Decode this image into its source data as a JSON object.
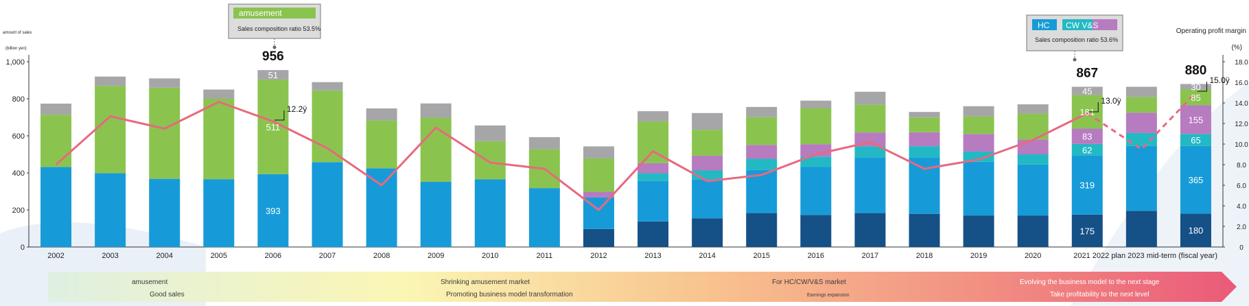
{
  "colors": {
    "grey": "#a6a6a9",
    "amusement": "#8ac44f",
    "vs": "#b77bc0",
    "cw": "#22b9c4",
    "hc": "#179bd8",
    "dark": "#155086",
    "margin_line": "#e8697f"
  },
  "chart_data": {
    "type": "bar",
    "stacked": true,
    "left_axis": {
      "label_line1": "amount of sales",
      "label_line2": "(billion yen)",
      "ticks": [
        "0",
        "200",
        "400",
        "600",
        "800",
        "1,000"
      ],
      "range": [
        0,
        1000
      ]
    },
    "right_axis": {
      "label": "Operating profit margin",
      "unit": "(%)",
      "ticks": [
        "0",
        "2.0",
        "4.0",
        "6.0",
        "8.0",
        "10.0",
        "12.0",
        "14.0",
        "16.0",
        "18.0"
      ],
      "range": [
        0,
        18
      ]
    },
    "categories": [
      "2002",
      "2003",
      "2004",
      "2005",
      "2006",
      "2007",
      "2008",
      "2009",
      "2010",
      "2011",
      "2012",
      "2013",
      "2014",
      "2015",
      "2016",
      "2017",
      "2018",
      "2019",
      "2020",
      "2021",
      "2022 plan",
      "2023 mid-term (fiscal year)"
    ],
    "x_labels": [
      "2002",
      "2003",
      "2004",
      "2005",
      "2006",
      "2007",
      "2008",
      "2009",
      "2010",
      "2011",
      "2012",
      "2013",
      "2014",
      "2015",
      "2016",
      "2017",
      "2018",
      "2019",
      "2020",
      "2021 2022 plan 2023 mid-term (fiscal year)"
    ],
    "series": [
      {
        "name": "dark",
        "color_key": "dark",
        "values": [
          0,
          0,
          0,
          0,
          0,
          0,
          0,
          0,
          0,
          0,
          97,
          138,
          155,
          183,
          173,
          183,
          179,
          170,
          170,
          175,
          195,
          180
        ]
      },
      {
        "name": "HC",
        "color_key": "hc",
        "values": [
          432,
          398,
          368,
          366,
          393,
          458,
          425,
          352,
          365,
          318,
          171,
          218,
          208,
          233,
          260,
          300,
          305,
          290,
          275,
          319,
          350,
          365
        ]
      },
      {
        "name": "CW",
        "color_key": "cw",
        "values": [
          0,
          0,
          0,
          0,
          0,
          0,
          0,
          0,
          0,
          0,
          0,
          42,
          50,
          60,
          55,
          60,
          60,
          55,
          55,
          62,
          70,
          65
        ]
      },
      {
        "name": "V&S",
        "color_key": "vs",
        "values": [
          0,
          0,
          0,
          0,
          0,
          0,
          0,
          0,
          0,
          0,
          30,
          55,
          80,
          75,
          67,
          75,
          75,
          95,
          80,
          83,
          110,
          155
        ]
      },
      {
        "name": "amusement",
        "color_key": "amusement",
        "values": [
          282,
          472,
          492,
          434,
          511,
          387,
          258,
          346,
          206,
          210,
          180,
          225,
          140,
          150,
          195,
          150,
          80,
          95,
          140,
          181,
          85,
          85
        ]
      },
      {
        "name": "other",
        "color_key": "grey",
        "values": [
          60,
          50,
          50,
          50,
          51,
          45,
          65,
          77,
          85,
          65,
          65,
          55,
          90,
          55,
          40,
          70,
          30,
          55,
          50,
          45,
          55,
          30
        ]
      }
    ],
    "segment_labels": [
      {
        "cat": 4,
        "series": 1,
        "text": "393"
      },
      {
        "cat": 4,
        "series": 4,
        "text": "511"
      },
      {
        "cat": 4,
        "series": 5,
        "text": "51"
      },
      {
        "cat": 19,
        "series": 0,
        "text": "175"
      },
      {
        "cat": 19,
        "series": 1,
        "text": "319"
      },
      {
        "cat": 19,
        "series": 2,
        "text": "62"
      },
      {
        "cat": 19,
        "series": 3,
        "text": "83"
      },
      {
        "cat": 19,
        "series": 4,
        "text": "181"
      },
      {
        "cat": 19,
        "series": 5,
        "text": "45"
      },
      {
        "cat": 21,
        "series": 0,
        "text": "180"
      },
      {
        "cat": 21,
        "series": 1,
        "text": "365"
      },
      {
        "cat": 21,
        "series": 2,
        "text": "65"
      },
      {
        "cat": 21,
        "series": 3,
        "text": "155"
      },
      {
        "cat": 21,
        "series": 4,
        "text": "85"
      },
      {
        "cat": 21,
        "series": 5,
        "text": "30"
      }
    ],
    "totals": [
      {
        "cat": 4,
        "text": "956"
      },
      {
        "cat": 19,
        "text": "867"
      },
      {
        "cat": 21,
        "text": "880"
      }
    ],
    "operating_profit_margin": [
      8.0,
      12.7,
      11.5,
      14.1,
      12.2,
      9.6,
      6.0,
      11.6,
      8.2,
      7.6,
      3.6,
      9.3,
      6.4,
      7.0,
      9.0,
      10.2,
      7.6,
      8.5,
      10.4,
      13.0,
      9.5,
      15.0
    ],
    "margin_labels": [
      {
        "cat": 4,
        "text": "12.2ÿ"
      },
      {
        "cat": 19,
        "text": "13.0ÿ"
      },
      {
        "cat": 21,
        "text": "15.0ÿ"
      }
    ]
  },
  "callout_2006": {
    "legend_label": "amusement",
    "ratio_text": "Sales composition ratio 53.5%"
  },
  "callout_2021": {
    "legend_labels": [
      "HC",
      "CW V&S",
      ""
    ],
    "ratio_text": "Sales composition ratio 53.6%"
  },
  "band": [
    {
      "line1": "amusement",
      "line2": "Good sales"
    },
    {
      "line1": "Shrinking amusement market",
      "line2": "Promoting business model transformation"
    },
    {
      "line1": "For HC/CW/V&S market",
      "line2": "Earnings expansion"
    },
    {
      "line1": "Evolving the business model to the next stage",
      "line2": "Take profitability to the next level"
    }
  ]
}
